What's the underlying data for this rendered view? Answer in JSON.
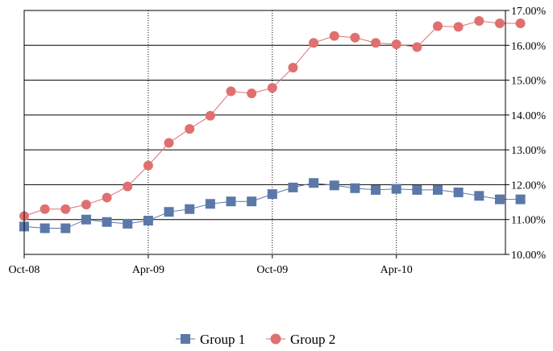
{
  "chart_data": {
    "type": "line",
    "x": [
      "2008-10",
      "2008-11",
      "2008-12",
      "2009-01",
      "2009-02",
      "2009-03",
      "2009-04",
      "2009-05",
      "2009-06",
      "2009-07",
      "2009-08",
      "2009-09",
      "2009-10",
      "2009-11",
      "2009-12",
      "2010-01",
      "2010-02",
      "2010-03",
      "2010-04",
      "2010-05",
      "2010-06",
      "2010-07",
      "2010-08",
      "2010-09",
      "2010-10"
    ],
    "series": [
      {
        "name": "Group 1",
        "color": "#5b78a8",
        "marker": "square",
        "values": [
          10.8,
          10.75,
          10.75,
          11.0,
          10.93,
          10.88,
          10.97,
          11.22,
          11.3,
          11.45,
          11.52,
          11.52,
          11.73,
          11.92,
          12.05,
          11.98,
          11.9,
          11.85,
          11.88,
          11.85,
          11.85,
          11.78,
          11.68,
          11.58,
          11.58
        ]
      },
      {
        "name": "Group 2",
        "color": "#e07070",
        "marker": "circle",
        "values": [
          11.1,
          11.3,
          11.3,
          11.43,
          11.63,
          11.95,
          12.55,
          13.2,
          13.6,
          13.98,
          14.68,
          14.62,
          14.78,
          15.36,
          16.07,
          16.27,
          16.22,
          16.07,
          16.03,
          15.95,
          16.55,
          16.53,
          16.7,
          16.63,
          16.63
        ]
      }
    ],
    "x_ticks": [
      {
        "label": "Oct-08",
        "index": 0
      },
      {
        "label": "Apr-09",
        "index": 6
      },
      {
        "label": "Oct-09",
        "index": 12
      },
      {
        "label": "Apr-10",
        "index": 18
      }
    ],
    "y_ticks": [
      "10.00%",
      "11.00%",
      "12.00%",
      "13.00%",
      "14.00%",
      "15.00%",
      "16.00%",
      "17.00%"
    ],
    "ylim": [
      10,
      17
    ],
    "y_axis_side": "right",
    "grid": true,
    "legend_position": "bottom"
  }
}
